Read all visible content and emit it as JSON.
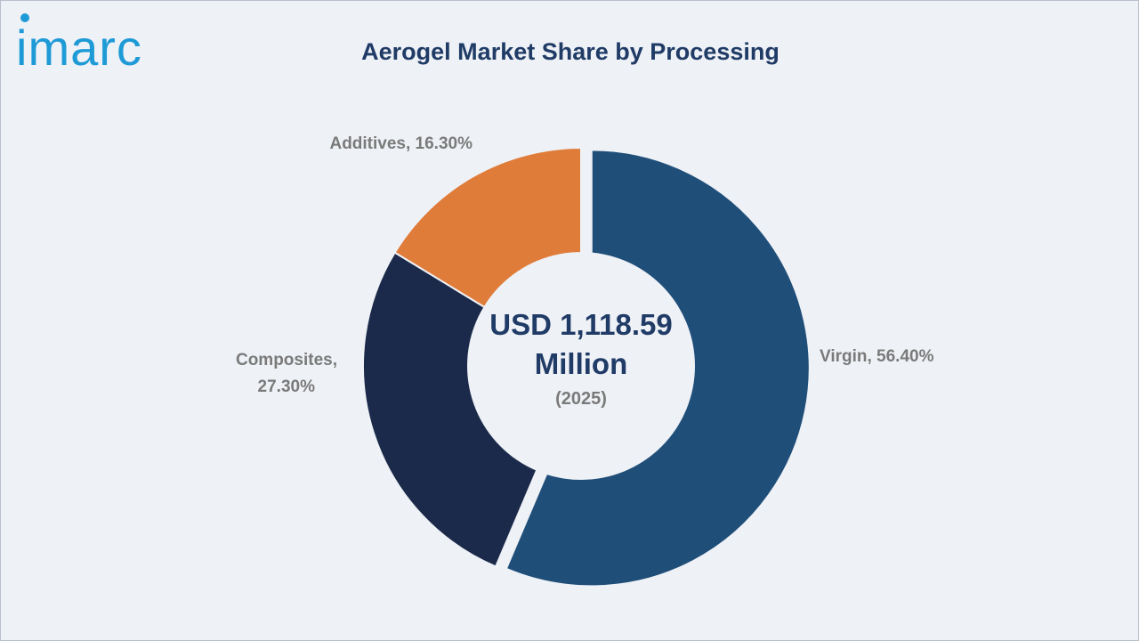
{
  "logo": {
    "text": "imarc",
    "color": "#1e9ad6"
  },
  "chart_data": {
    "type": "pie",
    "title": "Aerogel Market Share by Processing",
    "categories": [
      "Virgin",
      "Composites",
      "Additives"
    ],
    "values": [
      56.4,
      27.3,
      16.3
    ],
    "value_labels": [
      "56.40%",
      "27.30%",
      "16.30%"
    ],
    "colors": [
      "#1f4e79",
      "#1b2a4a",
      "#e07c3a"
    ],
    "donut": true,
    "exploded": "Virgin",
    "center_text": {
      "line1": "USD 1,118.59",
      "line2": "Million",
      "line3": "(2025)"
    },
    "labels": {
      "virgin": "Virgin, 56.40%",
      "composites_line1": "Composites,",
      "composites_line2": "27.30%",
      "additives": "Additives, 16.30%"
    }
  }
}
